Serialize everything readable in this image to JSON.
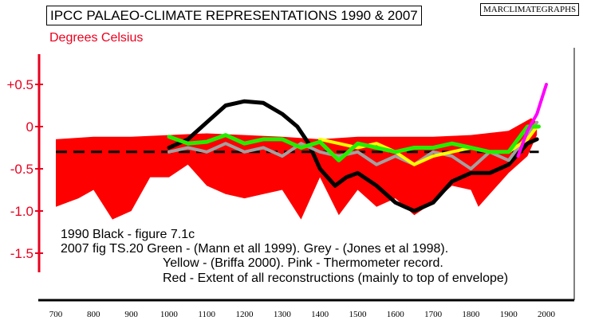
{
  "title": "IPCC PALAEO-CLIMATE REPRESENTATIONS 1990 & 2007",
  "brand": "MARCLIMATEGRAPHS",
  "unit_label": "Degrees Celsius",
  "notes": [
    "1990 Black - figure 7.1c",
    "2007 fig TS.20  Green - (Mann et all 1999). Grey - (Jones et al 1998).",
    "Yellow - (Briffa 2000). Pink - Thermometer record.",
    "Red - Extent of all reconstructions (mainly to top of envelope)"
  ],
  "colors": {
    "envelope": "#ff0000",
    "mann": "#22ee00",
    "jones": "#a0a0a0",
    "briffa": "#ffff00",
    "thermometer": "#ff00ff",
    "ipcc1990": "#000000",
    "axis_accent": "#e8001e"
  },
  "chart_data": {
    "type": "line",
    "title": "IPCC PALAEO-CLIMATE REPRESENTATIONS 1990 & 2007",
    "ylabel": "Degrees Celsius",
    "xlim": [
      680,
      2050
    ],
    "ylim": [
      -1.8,
      0.8
    ],
    "x_ticks": [
      700,
      800,
      900,
      1000,
      1100,
      1200,
      1300,
      1400,
      1500,
      1600,
      1700,
      1800,
      1900,
      2000
    ],
    "y_ticks": [
      {
        "value": 0.5,
        "label": "+0.5"
      },
      {
        "value": 0.0,
        "label": "0"
      },
      {
        "value": -0.5,
        "label": "-0.5"
      },
      {
        "value": -1.0,
        "label": "-1.0"
      },
      {
        "value": -1.5,
        "label": "-1.5"
      }
    ],
    "grid": false,
    "envelope": {
      "name": "Red - Extent of all reconstructions",
      "upper": [
        [
          700,
          -0.15
        ],
        [
          800,
          -0.12
        ],
        [
          900,
          -0.12
        ],
        [
          1000,
          -0.1
        ],
        [
          1100,
          -0.08
        ],
        [
          1200,
          -0.1
        ],
        [
          1300,
          -0.12
        ],
        [
          1400,
          -0.15
        ],
        [
          1500,
          -0.12
        ],
        [
          1600,
          -0.12
        ],
        [
          1700,
          -0.12
        ],
        [
          1800,
          -0.1
        ],
        [
          1900,
          -0.05
        ],
        [
          1960,
          0.1
        ],
        [
          1975,
          0.05
        ]
      ],
      "lower": [
        [
          700,
          -0.95
        ],
        [
          760,
          -0.85
        ],
        [
          800,
          -0.75
        ],
        [
          850,
          -1.1
        ],
        [
          900,
          -1.0
        ],
        [
          950,
          -0.6
        ],
        [
          1000,
          -0.6
        ],
        [
          1050,
          -0.45
        ],
        [
          1100,
          -0.7
        ],
        [
          1150,
          -0.8
        ],
        [
          1200,
          -0.85
        ],
        [
          1250,
          -0.8
        ],
        [
          1300,
          -0.75
        ],
        [
          1350,
          -1.1
        ],
        [
          1400,
          -0.6
        ],
        [
          1450,
          -1.05
        ],
        [
          1500,
          -0.75
        ],
        [
          1550,
          -0.95
        ],
        [
          1600,
          -0.85
        ],
        [
          1650,
          -1.05
        ],
        [
          1700,
          -0.9
        ],
        [
          1750,
          -0.7
        ],
        [
          1800,
          -0.75
        ],
        [
          1820,
          -0.95
        ],
        [
          1850,
          -0.8
        ],
        [
          1900,
          -0.55
        ],
        [
          1950,
          -0.35
        ],
        [
          1975,
          -0.1
        ]
      ]
    },
    "series": [
      {
        "name": "Black - 1990 figure 7.1c",
        "color": "#000000",
        "width": 5,
        "points": [
          [
            1000,
            -0.25
          ],
          [
            1050,
            -0.15
          ],
          [
            1100,
            0.05
          ],
          [
            1150,
            0.25
          ],
          [
            1200,
            0.3
          ],
          [
            1250,
            0.28
          ],
          [
            1300,
            0.15
          ],
          [
            1340,
            0.0
          ],
          [
            1370,
            -0.2
          ],
          [
            1400,
            -0.5
          ],
          [
            1440,
            -0.7
          ],
          [
            1470,
            -0.6
          ],
          [
            1500,
            -0.55
          ],
          [
            1550,
            -0.7
          ],
          [
            1600,
            -0.9
          ],
          [
            1650,
            -1.0
          ],
          [
            1700,
            -0.9
          ],
          [
            1750,
            -0.65
          ],
          [
            1800,
            -0.55
          ],
          [
            1850,
            -0.55
          ],
          [
            1900,
            -0.45
          ],
          [
            1950,
            -0.2
          ],
          [
            1975,
            -0.15
          ]
        ]
      },
      {
        "name": "Grey - (Jones et al 1998)",
        "color": "#a0a0a0",
        "width": 4,
        "points": [
          [
            1000,
            -0.3
          ],
          [
            1050,
            -0.25
          ],
          [
            1100,
            -0.3
          ],
          [
            1150,
            -0.2
          ],
          [
            1200,
            -0.3
          ],
          [
            1250,
            -0.25
          ],
          [
            1300,
            -0.35
          ],
          [
            1350,
            -0.2
          ],
          [
            1400,
            -0.3
          ],
          [
            1450,
            -0.35
          ],
          [
            1500,
            -0.3
          ],
          [
            1550,
            -0.45
          ],
          [
            1600,
            -0.35
          ],
          [
            1650,
            -0.45
          ],
          [
            1700,
            -0.3
          ],
          [
            1750,
            -0.35
          ],
          [
            1800,
            -0.5
          ],
          [
            1850,
            -0.3
          ],
          [
            1900,
            -0.4
          ],
          [
            1950,
            -0.1
          ],
          [
            1975,
            0.05
          ]
        ]
      },
      {
        "name": "Yellow - (Briffa 2000)",
        "color": "#ffff00",
        "width": 4,
        "points": [
          [
            1400,
            -0.15
          ],
          [
            1450,
            -0.2
          ],
          [
            1500,
            -0.25
          ],
          [
            1550,
            -0.2
          ],
          [
            1600,
            -0.3
          ],
          [
            1650,
            -0.45
          ],
          [
            1700,
            -0.35
          ],
          [
            1750,
            -0.3
          ],
          [
            1800,
            -0.25
          ],
          [
            1850,
            -0.3
          ],
          [
            1900,
            -0.3
          ],
          [
            1950,
            -0.15
          ],
          [
            1975,
            0.0
          ]
        ]
      },
      {
        "name": "Green - (Mann et all 1999)",
        "color": "#22ee00",
        "width": 5,
        "points": [
          [
            1000,
            -0.12
          ],
          [
            1050,
            -0.2
          ],
          [
            1100,
            -0.18
          ],
          [
            1150,
            -0.1
          ],
          [
            1200,
            -0.2
          ],
          [
            1250,
            -0.15
          ],
          [
            1300,
            -0.15
          ],
          [
            1350,
            -0.25
          ],
          [
            1400,
            -0.18
          ],
          [
            1450,
            -0.4
          ],
          [
            1500,
            -0.2
          ],
          [
            1550,
            -0.25
          ],
          [
            1600,
            -0.3
          ],
          [
            1650,
            -0.25
          ],
          [
            1700,
            -0.25
          ],
          [
            1750,
            -0.2
          ],
          [
            1800,
            -0.25
          ],
          [
            1850,
            -0.3
          ],
          [
            1900,
            -0.3
          ],
          [
            1950,
            0.0
          ],
          [
            1980,
            0.0
          ]
        ]
      },
      {
        "name": "Pink - Thermometer record",
        "color": "#ff00ff",
        "width": 4,
        "points": [
          [
            1925,
            -0.35
          ],
          [
            1950,
            -0.05
          ],
          [
            1975,
            0.15
          ],
          [
            2000,
            0.5
          ]
        ]
      }
    ],
    "reference_line": {
      "name": "1990 dashed reference",
      "value": -0.3,
      "x_range": [
        700,
        1980
      ],
      "color": "#000000"
    }
  }
}
